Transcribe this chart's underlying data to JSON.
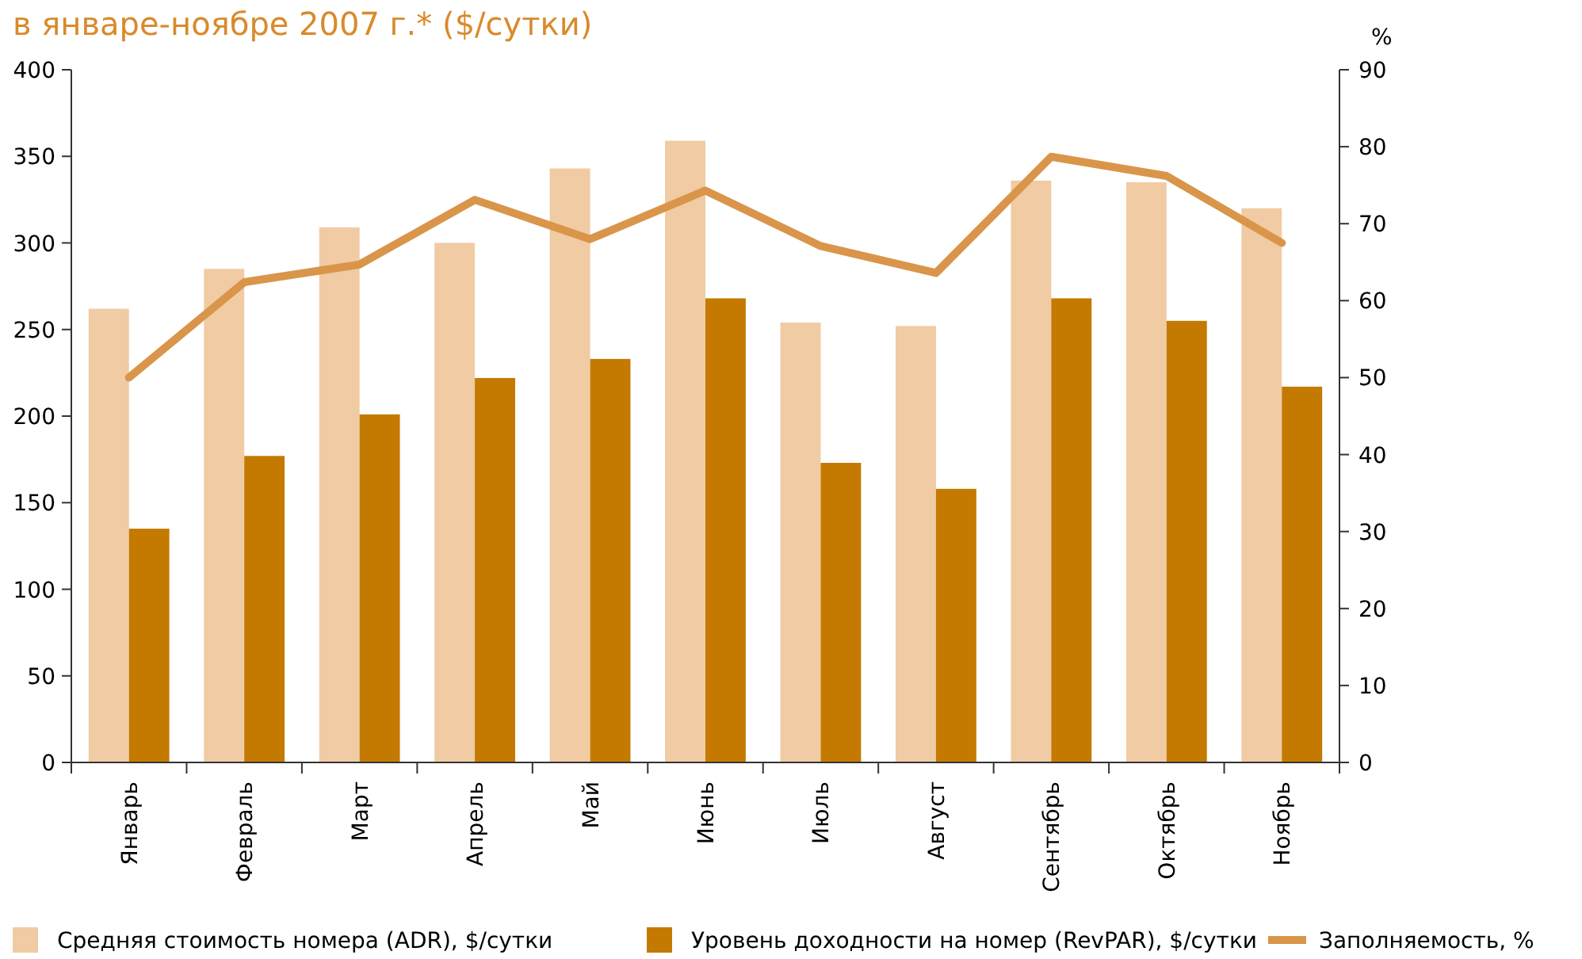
{
  "chart_data": {
    "type": "bar",
    "title": "в январе-ноябре 2007 г.* ($/сутки)",
    "y2label": "%",
    "categories": [
      "Январь",
      "Февраль",
      "Март",
      "Апрель",
      "Май",
      "Июнь",
      "Июль",
      "Август",
      "Сентябрь",
      "Октябрь",
      "Ноябрь"
    ],
    "series": [
      {
        "name": "Средняя стоимость номера (ADR), $/сутки",
        "color": "#f0cba3",
        "values": [
          262,
          285,
          309,
          300,
          343,
          359,
          254,
          252,
          336,
          335,
          320
        ]
      },
      {
        "name": "Уровень доходности на номер (RevPAR), $/сутки",
        "color": "#c47a00",
        "values": [
          135,
          177,
          201,
          222,
          233,
          268,
          173,
          158,
          268,
          255,
          217
        ]
      },
      {
        "name": "Заполняемость, %",
        "type": "line",
        "axis": "y2",
        "color": "#d9954a",
        "values": [
          50,
          62.4,
          64.7,
          73.1,
          68,
          74.3,
          67.1,
          63.6,
          78.7,
          76.2,
          67.5
        ]
      }
    ],
    "ylim": [
      0,
      400
    ],
    "yticks": [
      0,
      50,
      100,
      150,
      200,
      250,
      300,
      350,
      400
    ],
    "y2lim": [
      0,
      90
    ],
    "y2ticks": [
      0,
      10,
      20,
      30,
      40,
      50,
      60,
      70,
      80,
      90
    ],
    "grid": false,
    "legend": "bottom",
    "marker": "none",
    "line_style": "solid"
  }
}
